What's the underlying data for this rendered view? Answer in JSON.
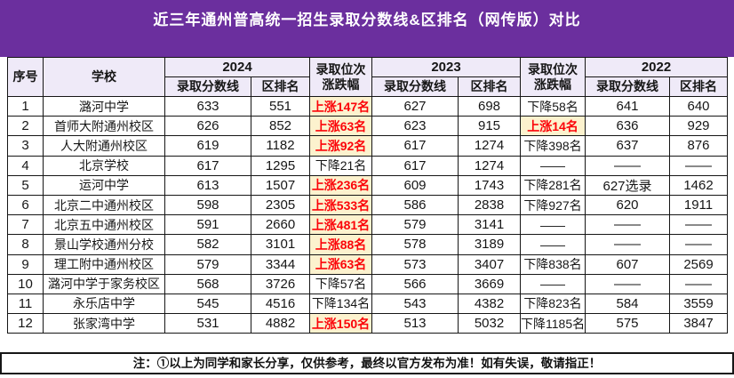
{
  "title": "近三年通州普高统一招生录取分数线&区排名（网传版）对比",
  "colors": {
    "banner": "#6b2f9e",
    "header_bg": "#efeaf8",
    "highlight_bg": "#fcf2ce",
    "highlight_text": "#fb0409",
    "border": "#161616"
  },
  "header": {
    "seq": "序号",
    "school": "学校",
    "year2024": "2024",
    "year2023": "2023",
    "year2022": "2022",
    "score": "录取分数线",
    "rank": "区排名",
    "change1": "录取位次",
    "change2": "涨跌幅"
  },
  "note": "注：①以上为同学和家长分享，仅供参考，最终以官方发布为准！如有失误，敬请指正！",
  "table": {
    "columns": [
      "seq",
      "school",
      "score24",
      "rank24",
      "change24",
      "score23",
      "rank23",
      "change23",
      "score22",
      "rank22"
    ],
    "rows": [
      {
        "seq": "1",
        "school": "潞河中学",
        "score24": "633",
        "rank24": "551",
        "change24": "上涨147名",
        "change24_up": true,
        "score23": "627",
        "rank23": "698",
        "change23": "下降58名",
        "change23_up": false,
        "score22": "641",
        "rank22": "640"
      },
      {
        "seq": "2",
        "school": "首师大附通州校区",
        "score24": "626",
        "rank24": "852",
        "change24": "上涨63名",
        "change24_up": true,
        "score23": "623",
        "rank23": "915",
        "change23": "上涨14名",
        "change23_up": true,
        "score22": "636",
        "rank22": "929"
      },
      {
        "seq": "3",
        "school": "人大附通州校区",
        "score24": "619",
        "rank24": "1182",
        "change24": "上涨92名",
        "change24_up": true,
        "score23": "617",
        "rank23": "1274",
        "change23": "下降398名",
        "change23_up": false,
        "score22": "637",
        "rank22": "876"
      },
      {
        "seq": "4",
        "school": "北京学校",
        "score24": "617",
        "rank24": "1295",
        "change24": "下降21名",
        "change24_up": false,
        "score23": "617",
        "rank23": "1274",
        "change23": "——",
        "change23_up": false,
        "score22": "——",
        "rank22": "——"
      },
      {
        "seq": "5",
        "school": "运河中学",
        "score24": "613",
        "rank24": "1507",
        "change24": "上涨236名",
        "change24_up": true,
        "score23": "609",
        "rank23": "1743",
        "change23": "下降281名",
        "change23_up": false,
        "score22": "627选录",
        "rank22": "1462"
      },
      {
        "seq": "6",
        "school": "北京二中通州校区",
        "score24": "598",
        "rank24": "2305",
        "change24": "上涨533名",
        "change24_up": true,
        "score23": "586",
        "rank23": "2838",
        "change23": "下降927名",
        "change23_up": false,
        "score22": "620",
        "rank22": "1911"
      },
      {
        "seq": "7",
        "school": "北京五中通州校区",
        "score24": "591",
        "rank24": "2660",
        "change24": "上涨481名",
        "change24_up": true,
        "score23": "579",
        "rank23": "3141",
        "change23": "——",
        "change23_up": false,
        "score22": "——",
        "rank22": "——"
      },
      {
        "seq": "8",
        "school": "景山学校通州分校",
        "score24": "582",
        "rank24": "3101",
        "change24": "上涨88名",
        "change24_up": true,
        "score23": "578",
        "rank23": "3189",
        "change23": "——",
        "change23_up": false,
        "score22": "——",
        "rank22": "——"
      },
      {
        "seq": "9",
        "school": "理工附中通州校区",
        "score24": "579",
        "rank24": "3344",
        "change24": "上涨63名",
        "change24_up": true,
        "score23": "573",
        "rank23": "3407",
        "change23": "下降838名",
        "change23_up": false,
        "score22": "607",
        "rank22": "2569"
      },
      {
        "seq": "10",
        "school": "潞河中学于家务校区",
        "score24": "568",
        "rank24": "3726",
        "change24": "下降57名",
        "change24_up": false,
        "score23": "566",
        "rank23": "3669",
        "change23": "——",
        "change23_up": false,
        "score22": "——",
        "rank22": "——"
      },
      {
        "seq": "11",
        "school": "永乐店中学",
        "score24": "545",
        "rank24": "4516",
        "change24": "下降134名",
        "change24_up": false,
        "score23": "543",
        "rank23": "4382",
        "change23": "下降823名",
        "change23_up": false,
        "score22": "584",
        "rank22": "3559"
      },
      {
        "seq": "12",
        "school": "张家湾中学",
        "score24": "531",
        "rank24": "4882",
        "change24": "上涨150名",
        "change24_up": true,
        "score23": "513",
        "rank23": "5032",
        "change23": "下降1185名",
        "change23_up": false,
        "score22": "575",
        "rank22": "3847"
      }
    ]
  }
}
